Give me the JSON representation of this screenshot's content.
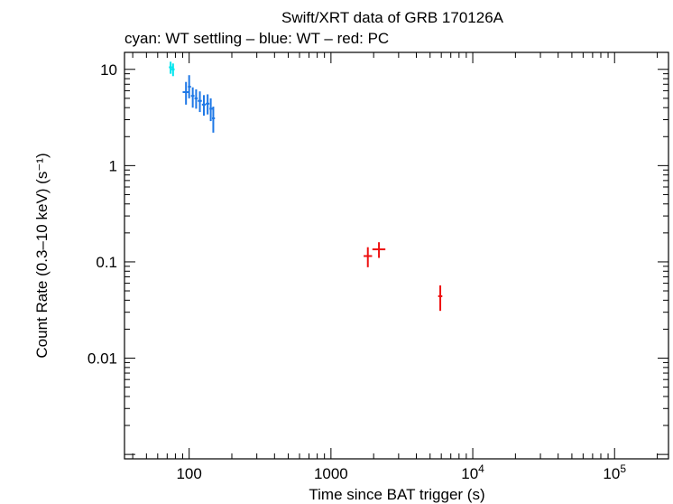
{
  "chart_data": {
    "type": "scatter",
    "title": "Swift/XRT data of GRB 170126A",
    "subtitle": "cyan: WT settling – blue: WT – red: PC",
    "xlabel": "Time since BAT trigger (s)",
    "ylabel": "Count Rate (0.3–10 keV) (s⁻¹)",
    "xscale": "log",
    "yscale": "log",
    "xlim": [
      35,
      240000
    ],
    "ylim": [
      0.0009,
      15
    ],
    "x_ticks": [
      {
        "value": 100,
        "label": "100",
        "sup": ""
      },
      {
        "value": 1000,
        "label": "1000",
        "sup": ""
      },
      {
        "value": 10000,
        "label": "10",
        "sup": "4"
      },
      {
        "value": 100000,
        "label": "10",
        "sup": "5"
      }
    ],
    "y_ticks": [
      {
        "value": 10,
        "label": "10"
      },
      {
        "value": 1,
        "label": "1"
      },
      {
        "value": 0.1,
        "label": "0.1"
      },
      {
        "value": 0.01,
        "label": "0.01"
      }
    ],
    "series": [
      {
        "color": "#00e5ee",
        "points": [
          {
            "x": 74,
            "y": 10.5,
            "xlo": 72,
            "xhi": 76,
            "ylo": 9.0,
            "yhi": 12.0
          },
          {
            "x": 77,
            "y": 10.0,
            "xlo": 75,
            "xhi": 79,
            "ylo": 8.5,
            "yhi": 11.5
          }
        ]
      },
      {
        "color": "#1e78e6",
        "points": [
          {
            "x": 95,
            "y": 5.8,
            "xlo": 90,
            "xhi": 100,
            "ylo": 4.3,
            "yhi": 7.4
          },
          {
            "x": 100,
            "y": 6.6,
            "xlo": 98,
            "xhi": 103,
            "ylo": 5.0,
            "yhi": 8.7
          },
          {
            "x": 106,
            "y": 5.3,
            "xlo": 103,
            "xhi": 109,
            "ylo": 4.0,
            "yhi": 6.5
          },
          {
            "x": 112,
            "y": 5.0,
            "xlo": 109,
            "xhi": 115,
            "ylo": 3.9,
            "yhi": 6.2
          },
          {
            "x": 119,
            "y": 4.7,
            "xlo": 115,
            "xhi": 123,
            "ylo": 3.6,
            "yhi": 5.9
          },
          {
            "x": 127,
            "y": 4.3,
            "xlo": 123,
            "xhi": 131,
            "ylo": 3.3,
            "yhi": 5.4
          },
          {
            "x": 135,
            "y": 4.4,
            "xlo": 131,
            "xhi": 139,
            "ylo": 3.4,
            "yhi": 5.5
          },
          {
            "x": 142,
            "y": 3.9,
            "xlo": 139,
            "xhi": 146,
            "ylo": 2.9,
            "yhi": 5.0
          },
          {
            "x": 148,
            "y": 3.1,
            "xlo": 145,
            "xhi": 152,
            "ylo": 2.2,
            "yhi": 4.1
          }
        ]
      },
      {
        "color": "#ee1111",
        "points": [
          {
            "x": 1820,
            "y": 0.115,
            "xlo": 1700,
            "xhi": 1950,
            "ylo": 0.088,
            "yhi": 0.142
          },
          {
            "x": 2180,
            "y": 0.135,
            "xlo": 1960,
            "xhi": 2420,
            "ylo": 0.11,
            "yhi": 0.16
          },
          {
            "x": 5900,
            "y": 0.044,
            "xlo": 5700,
            "xhi": 6100,
            "ylo": 0.031,
            "yhi": 0.057
          }
        ]
      }
    ]
  }
}
